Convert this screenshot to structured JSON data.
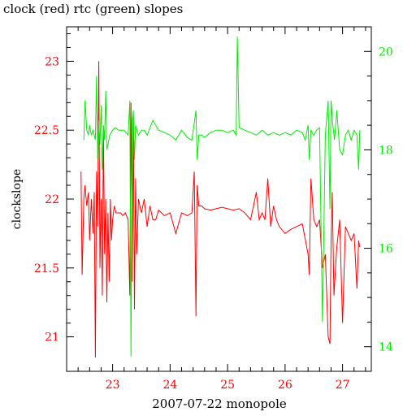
{
  "chart_data": {
    "type": "line",
    "title": "clock (red) rtc (green) slopes",
    "xlabel": "2007-07-22 monopole",
    "ylabel": "clockslope",
    "xlim": [
      22.2,
      27.5
    ],
    "ylim_left": [
      20.75,
      23.25
    ],
    "ylim_right": [
      13.5,
      20.5
    ],
    "xticks": [
      23,
      24,
      25,
      26,
      27
    ],
    "yticks_left": [
      21,
      21.5,
      22,
      22.5,
      23
    ],
    "yticks_right": [
      14,
      16,
      18,
      20
    ],
    "grid": false,
    "colors": {
      "clock": "#ff0000",
      "rtc": "#00ee00",
      "axes": "#000000"
    },
    "series": [
      {
        "name": "clock",
        "axis": "left",
        "x": [
          22.45,
          22.47,
          22.5,
          22.52,
          22.55,
          22.58,
          22.6,
          22.63,
          22.66,
          22.68,
          22.7,
          22.72,
          22.74,
          22.76,
          22.78,
          22.8,
          22.82,
          22.84,
          22.86,
          22.88,
          22.9,
          22.92,
          22.94,
          22.96,
          22.98,
          23.0,
          23.03,
          23.06,
          23.1,
          23.14,
          23.18,
          23.22,
          23.27,
          23.3,
          23.32,
          23.34,
          23.36,
          23.38,
          23.4,
          23.42,
          23.45,
          23.5,
          23.55,
          23.6,
          23.65,
          23.7,
          23.75,
          23.8,
          23.9,
          24.0,
          24.1,
          24.2,
          24.3,
          24.38,
          24.42,
          24.45,
          24.47,
          24.5,
          24.55,
          24.6,
          24.7,
          24.8,
          24.9,
          25.0,
          25.1,
          25.2,
          25.3,
          25.4,
          25.45,
          25.5,
          25.55,
          25.6,
          25.65,
          25.7,
          25.75,
          25.8,
          25.85,
          25.9,
          26.0,
          26.1,
          26.2,
          26.3,
          26.4,
          26.42,
          26.45,
          26.5,
          26.55,
          26.6,
          26.65,
          26.7,
          26.75,
          26.78,
          26.8,
          26.82,
          26.85,
          26.9,
          26.95,
          27.0,
          27.05,
          27.1,
          27.15,
          27.2,
          27.25,
          27.28,
          27.3
        ],
        "values": [
          22.2,
          21.45,
          22.0,
          22.1,
          21.95,
          22.05,
          21.7,
          22.0,
          21.75,
          22.05,
          20.85,
          22.2,
          21.8,
          23.0,
          21.5,
          22.0,
          21.3,
          22.5,
          21.6,
          22.0,
          21.25,
          21.9,
          21.4,
          22.0,
          21.7,
          21.85,
          21.95,
          21.9,
          21.9,
          21.9,
          21.88,
          21.9,
          21.85,
          21.3,
          22.7,
          21.4,
          22.6,
          21.2,
          22.15,
          21.6,
          22.0,
          21.9,
          22.0,
          21.8,
          21.95,
          21.85,
          21.85,
          21.92,
          21.88,
          21.9,
          21.75,
          21.9,
          21.88,
          21.9,
          22.2,
          21.15,
          22.1,
          21.95,
          21.95,
          21.93,
          21.92,
          21.93,
          21.94,
          21.93,
          21.92,
          21.93,
          21.9,
          21.85,
          21.95,
          22.05,
          21.85,
          21.9,
          21.85,
          22.15,
          21.8,
          21.95,
          21.85,
          21.8,
          21.75,
          21.78,
          21.8,
          21.82,
          21.6,
          21.45,
          22.15,
          21.85,
          21.8,
          21.85,
          21.5,
          21.6,
          21.0,
          20.95,
          21.7,
          22.05,
          21.3,
          21.65,
          21.85,
          21.1,
          21.8,
          21.75,
          21.7,
          21.75,
          21.35,
          21.7,
          21.65
        ]
      },
      {
        "name": "rtc",
        "axis": "right",
        "x": [
          22.5,
          22.52,
          22.55,
          22.58,
          22.6,
          22.63,
          22.66,
          22.7,
          22.72,
          22.74,
          22.76,
          22.78,
          22.8,
          22.82,
          22.84,
          22.86,
          22.88,
          22.9,
          22.95,
          23.0,
          23.05,
          23.1,
          23.15,
          23.2,
          23.27,
          23.3,
          23.32,
          23.34,
          23.36,
          23.38,
          23.4,
          23.45,
          23.5,
          23.55,
          23.6,
          23.7,
          23.8,
          23.9,
          24.0,
          24.1,
          24.2,
          24.3,
          24.38,
          24.45,
          24.47,
          24.5,
          24.55,
          24.6,
          24.7,
          24.8,
          24.9,
          25.0,
          25.1,
          25.15,
          25.17,
          25.2,
          25.3,
          25.4,
          25.5,
          25.6,
          25.7,
          25.8,
          25.9,
          26.0,
          26.1,
          26.2,
          26.3,
          26.35,
          26.4,
          26.42,
          26.45,
          26.5,
          26.55,
          26.6,
          26.65,
          26.7,
          26.75,
          26.78,
          26.8,
          26.83,
          26.86,
          26.9,
          26.95,
          27.0,
          27.05,
          27.1,
          27.15,
          27.2,
          27.25,
          27.28,
          27.3
        ],
        "values": [
          18.2,
          19.0,
          18.4,
          18.3,
          18.5,
          18.3,
          18.4,
          18.2,
          19.5,
          17.8,
          18.6,
          18.1,
          18.9,
          17.6,
          18.5,
          18.2,
          19.2,
          18.0,
          18.3,
          18.4,
          18.45,
          18.4,
          18.4,
          18.4,
          18.3,
          19.0,
          13.8,
          18.6,
          18.8,
          17.8,
          18.5,
          18.3,
          18.4,
          18.4,
          18.3,
          18.6,
          18.4,
          18.35,
          18.3,
          18.2,
          18.4,
          18.25,
          18.2,
          18.8,
          17.8,
          18.3,
          18.3,
          18.25,
          18.35,
          18.4,
          18.4,
          18.35,
          18.4,
          18.3,
          20.3,
          18.45,
          18.4,
          18.35,
          18.3,
          18.4,
          18.3,
          18.35,
          18.3,
          18.35,
          18.3,
          18.4,
          18.35,
          18.2,
          18.5,
          17.8,
          18.4,
          18.3,
          18.4,
          18.45,
          14.5,
          18.3,
          19.0,
          16.8,
          19.0,
          18.5,
          18.2,
          18.8,
          18.0,
          17.9,
          18.3,
          18.4,
          18.2,
          18.4,
          18.3,
          17.6,
          18.4
        ]
      }
    ]
  }
}
